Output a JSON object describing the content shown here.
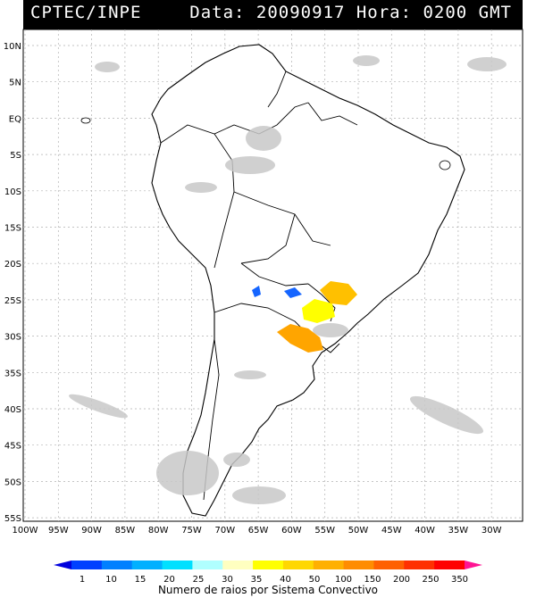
{
  "header": {
    "left": "CPTEC/INPE",
    "right": "Data: 20090917 Hora: 0200 GMT"
  },
  "map": {
    "lat_labels": [
      "10N",
      "5N",
      "EQ",
      "5S",
      "10S",
      "15S",
      "20S",
      "25S",
      "30S",
      "35S",
      "40S",
      "45S",
      "50S",
      "55S"
    ],
    "lon_labels": [
      "100W",
      "95W",
      "90W",
      "85W",
      "80W",
      "75W",
      "70W",
      "65W",
      "60W",
      "55W",
      "50W",
      "45W",
      "40W",
      "35W",
      "30W"
    ],
    "grid": true,
    "features": [
      {
        "kind": "convective-system",
        "level": "5",
        "color": "#1565ff"
      },
      {
        "kind": "convective-system",
        "level": "35",
        "color": "#ffff00"
      },
      {
        "kind": "convective-system",
        "level": "100",
        "color": "#ffa500"
      }
    ]
  },
  "legend": {
    "caption": "Numero de raios por Sistema Convectivo",
    "ticks": [
      "1",
      "10",
      "15",
      "20",
      "25",
      "30",
      "35",
      "40",
      "50",
      "100",
      "150",
      "200",
      "250",
      "350"
    ],
    "colors": [
      "#0000dd",
      "#0040ff",
      "#0080ff",
      "#00b0ff",
      "#00e0ff",
      "#b0ffff",
      "#ffffc0",
      "#ffff00",
      "#ffd700",
      "#ffb000",
      "#ff8c00",
      "#ff6000",
      "#ff3000",
      "#ff0000",
      "#ff1493"
    ]
  }
}
